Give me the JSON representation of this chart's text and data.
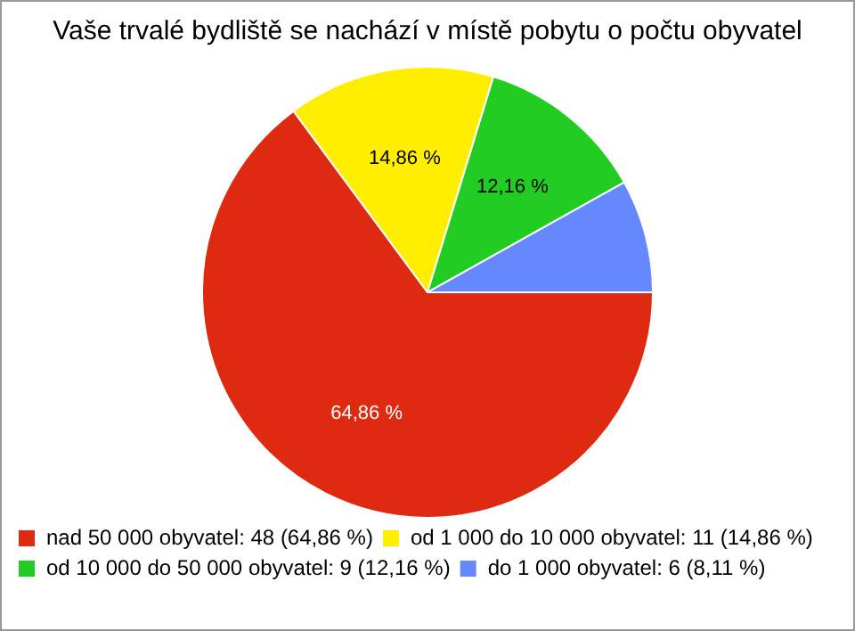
{
  "chart_data": {
    "type": "pie",
    "title": "Vaše trvalé bydliště se nachází v místě pobytu o počtu obyvatel",
    "categories": [
      "nad 50 000 obyvatel: 48 (64,86 %)",
      "od 1 000 do 10 000 obyvatel: 11 (14,86 %)",
      "od 10 000 do 50 000 obyvatel: 9 (12,16 %)",
      "do 1 000 obyvatel: 6 (8,11 %)"
    ],
    "values": [
      64.86,
      14.86,
      12.16,
      8.11
    ],
    "colors": [
      "#dd2a10",
      "#ffee00",
      "#22cc22",
      "#6688ff"
    ],
    "value_labels": [
      "64,86 %",
      "14,86 %",
      "12,16 %",
      null
    ],
    "legend": "bottom left"
  }
}
